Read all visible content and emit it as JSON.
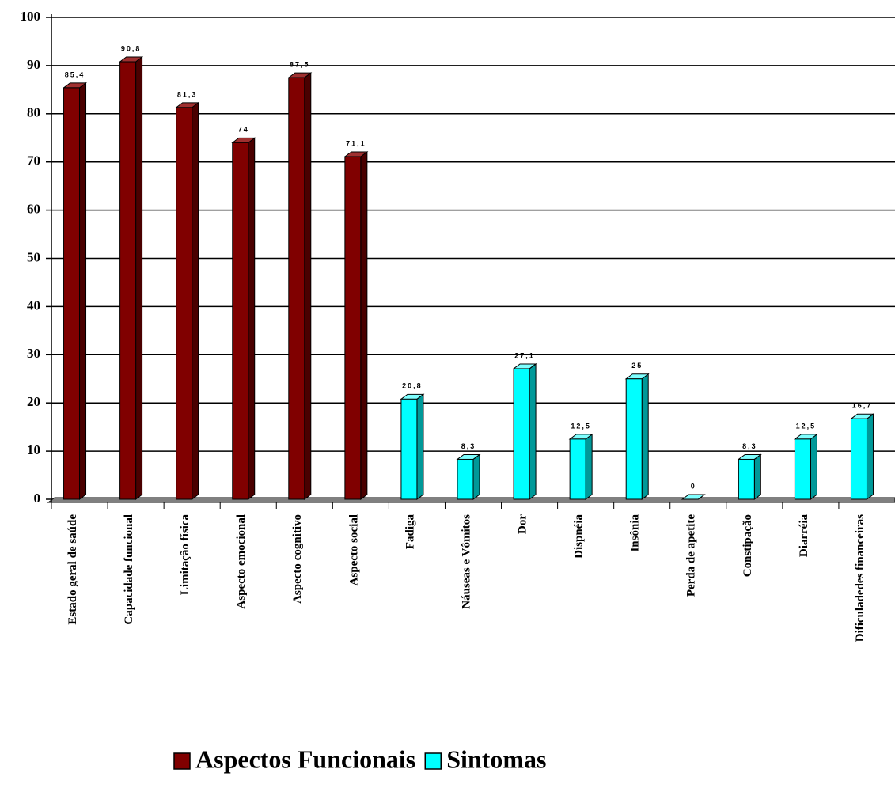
{
  "chart_data": {
    "type": "bar",
    "categories": [
      "Estado geral de saúde",
      "Capacidade funcional",
      "Limitação física",
      "Aspecto emocional",
      "Aspecto cognitivo",
      "Aspecto social",
      "Fadiga",
      "Náuseas e Vômitos",
      "Dor",
      "Dispnéia",
      "Insônia",
      "Perda de apetite",
      "Constipação",
      "Diarréia",
      "Dificuladedes financeiras"
    ],
    "series": [
      {
        "name": "Aspectos Funcionais",
        "color": "#800000",
        "values": [
          85.4,
          90.8,
          81.3,
          74,
          87.5,
          71.1,
          null,
          null,
          null,
          null,
          null,
          null,
          null,
          null,
          null
        ],
        "value_labels": [
          "85,4",
          "90,8",
          "81,3",
          "74",
          "87,5",
          "71,1",
          null,
          null,
          null,
          null,
          null,
          null,
          null,
          null,
          null
        ]
      },
      {
        "name": "Sintomas",
        "color": "#00ffff",
        "values": [
          null,
          null,
          null,
          null,
          null,
          null,
          20.8,
          8.3,
          27.1,
          12.5,
          25,
          0,
          8.3,
          12.5,
          16.7
        ],
        "value_labels": [
          null,
          null,
          null,
          null,
          null,
          null,
          "20,8",
          "8,3",
          "27,1",
          "12,5",
          "25",
          "0",
          "8,3",
          "12,5",
          "16,7"
        ]
      }
    ],
    "ylim": [
      0,
      100
    ],
    "yticks": [
      0,
      10,
      20,
      30,
      40,
      50,
      60,
      70,
      80,
      90,
      100
    ],
    "grid": true,
    "legend": "bottom"
  }
}
